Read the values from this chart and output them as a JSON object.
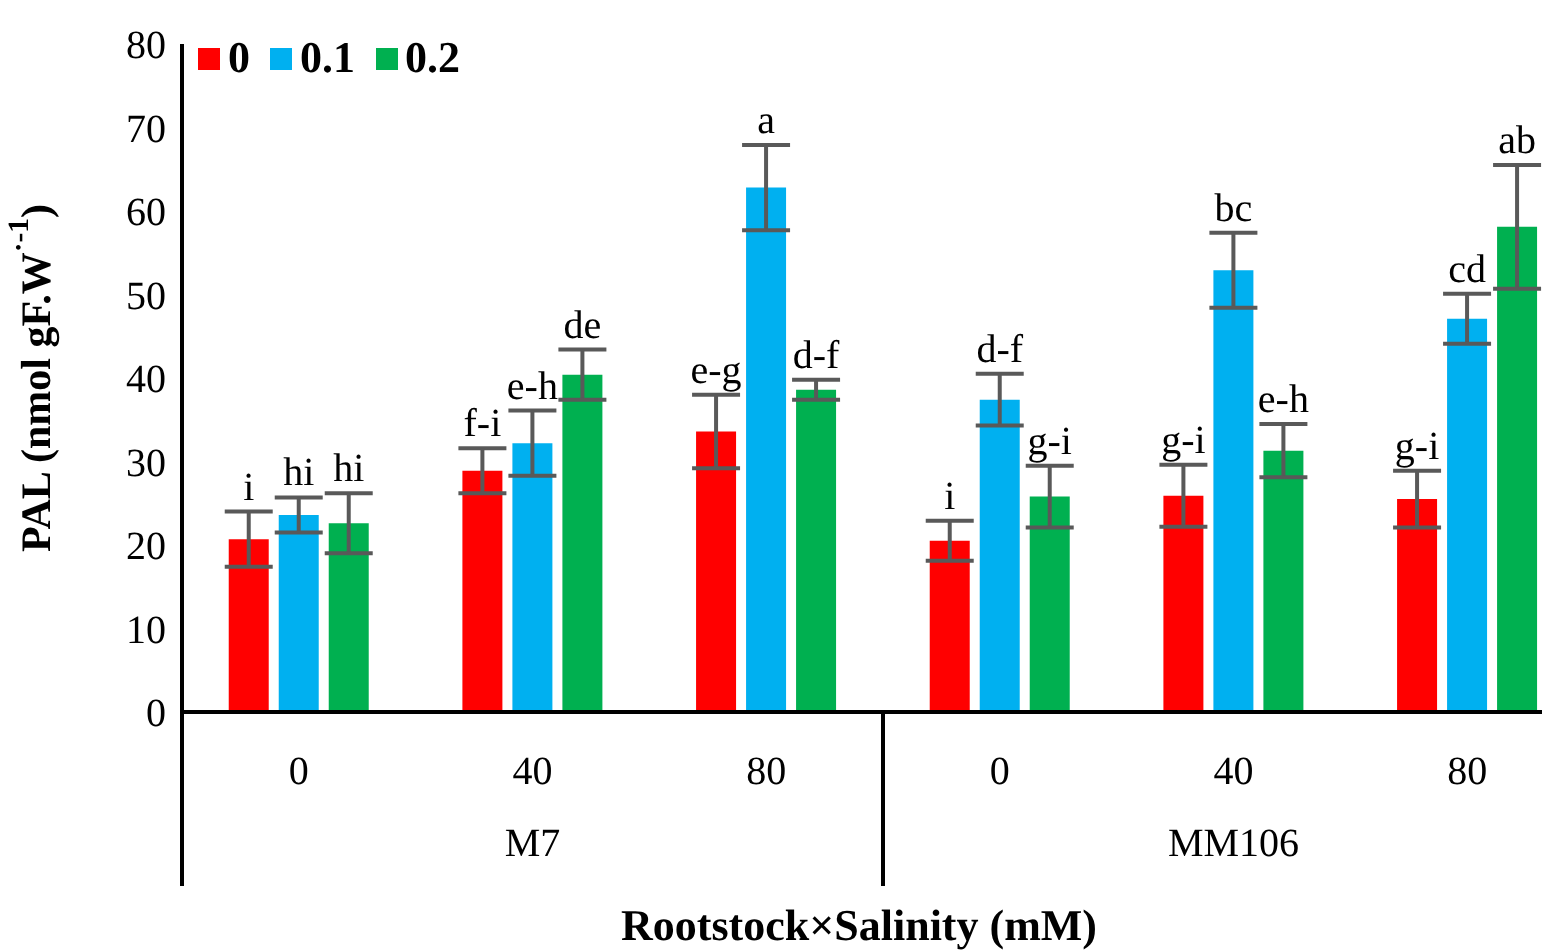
{
  "chart_data": {
    "type": "bar",
    "xlabel": "Rootstock×Salinity (mM)",
    "ylabel": "PAL (nmol gF.W$^{·-1}$)",
    "categories": [
      "0",
      "40",
      "80",
      "0",
      "40",
      "80"
    ],
    "annotations": [
      "M7",
      "MM106"
    ],
    "ylim": [
      0,
      80
    ],
    "yticks": [
      0,
      10,
      20,
      30,
      40,
      50,
      60,
      70,
      80
    ],
    "grid": false,
    "legend": "top left",
    "series": [
      {
        "name": "0",
        "color": "#ff0000",
        "values": [
          20.7,
          28.9,
          33.6,
          20.5,
          25.9,
          25.5
        ],
        "errors": [
          3.3,
          2.7,
          4.4,
          2.4,
          3.7,
          3.4
        ],
        "value_labels": [
          "i",
          "f-i",
          "e-g",
          "i",
          "g-i",
          "g-i"
        ]
      },
      {
        "name": "0.1",
        "color": "#00b0f0",
        "values": [
          23.6,
          32.2,
          62.8,
          37.4,
          52.9,
          47.1
        ],
        "errors": [
          2.1,
          3.9,
          5.1,
          3.1,
          4.5,
          3.0
        ],
        "value_labels": [
          "hi",
          "e-h",
          "a",
          "d-f",
          "bc",
          "cd"
        ]
      },
      {
        "name": "0.2",
        "color": "#00b050",
        "values": [
          22.6,
          40.4,
          38.6,
          25.8,
          31.3,
          58.1
        ],
        "errors": [
          3.6,
          3.0,
          1.2,
          3.7,
          3.2,
          7.4
        ],
        "value_labels": [
          "hi",
          "de",
          "d-f",
          "g-i",
          "e-h",
          "ab"
        ]
      }
    ]
  }
}
